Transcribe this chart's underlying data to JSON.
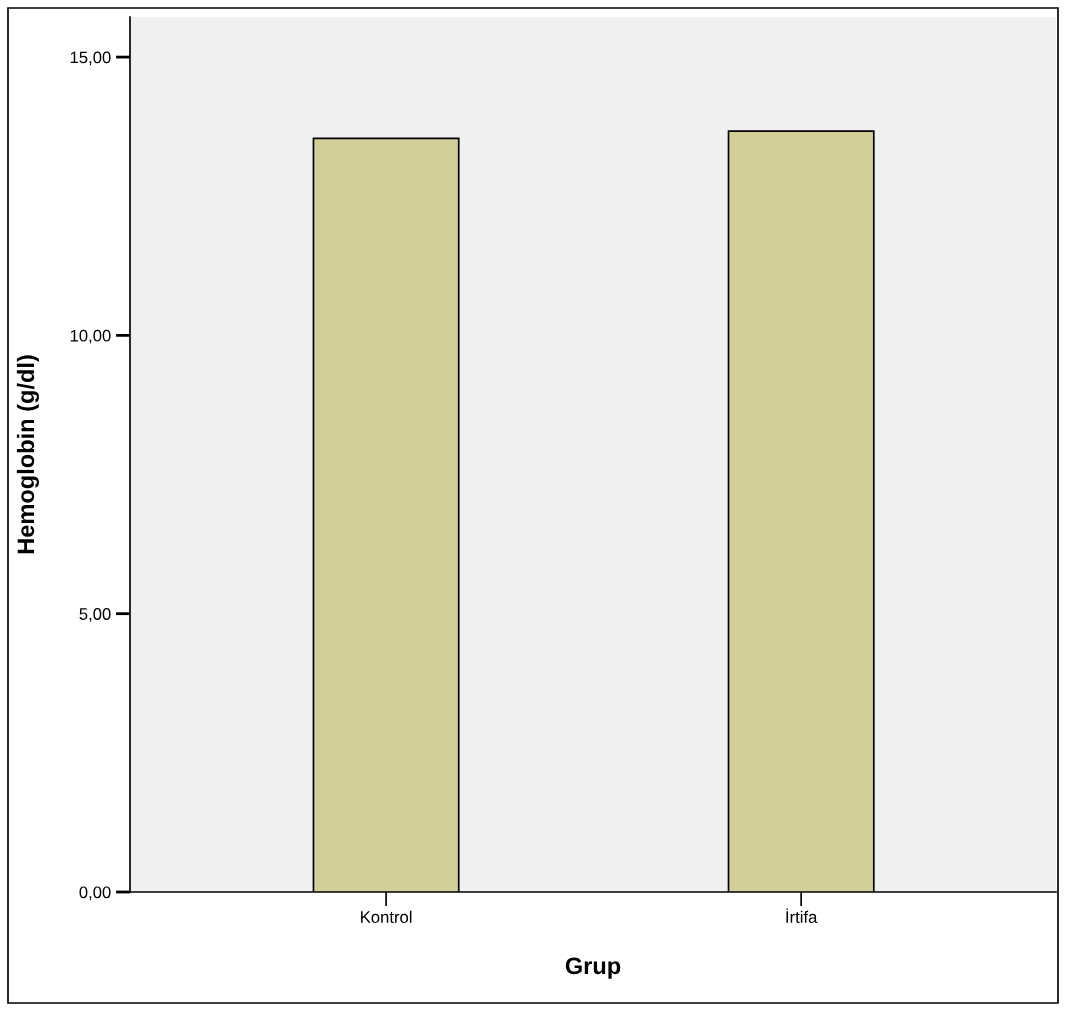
{
  "chart_data": {
    "type": "bar",
    "xlabel": "Grup",
    "ylabel": "Hemoglobin (g/dl)",
    "categories": [
      "Kontrol",
      "İrtifa"
    ],
    "values": [
      13.54,
      13.67
    ],
    "color": "#d3ce97",
    "ylim": [
      0,
      15.72
    ],
    "yticks": [
      {
        "value": 0,
        "label": "0,00"
      },
      {
        "value": 5,
        "label": "5,00"
      },
      {
        "value": 10,
        "label": "10,00"
      },
      {
        "value": 15,
        "label": "15,00"
      }
    ],
    "grid": false,
    "legend": false
  }
}
